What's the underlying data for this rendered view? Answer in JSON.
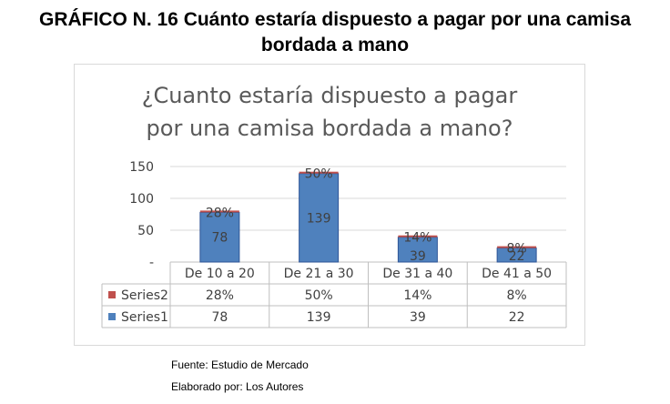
{
  "heading": {
    "line1": "GRÁFICO N.  16 Cuánto estaría dispuesto a pagar por una camisa",
    "line2": "bordada a mano"
  },
  "chart_data": {
    "type": "bar",
    "title_lines": [
      "¿Cuanto estaría dispuesto a pagar",
      "por una camisa bordada a mano?"
    ],
    "categories": [
      "De 10 a 20",
      "De 21 a 30",
      "De 31 a 40",
      "De 41 a 50"
    ],
    "series": [
      {
        "name": "Series2",
        "values": [
          0.28,
          0.5,
          0.14,
          0.08
        ],
        "labels": [
          "28%",
          "50%",
          "14%",
          "8%"
        ],
        "color": "#c0504d"
      },
      {
        "name": "Series1",
        "values": [
          78,
          139,
          39,
          22
        ],
        "labels": [
          "78",
          "139",
          "39",
          "22"
        ],
        "color": "#4f81bd"
      }
    ],
    "yticks": [
      "-",
      "50",
      "100",
      "150"
    ],
    "ylim": [
      0,
      150
    ],
    "grid": true,
    "legend": "data-table"
  },
  "footer": {
    "source": "Fuente: Estudio de Mercado",
    "author": "Elaborado por: Los  Autores"
  }
}
